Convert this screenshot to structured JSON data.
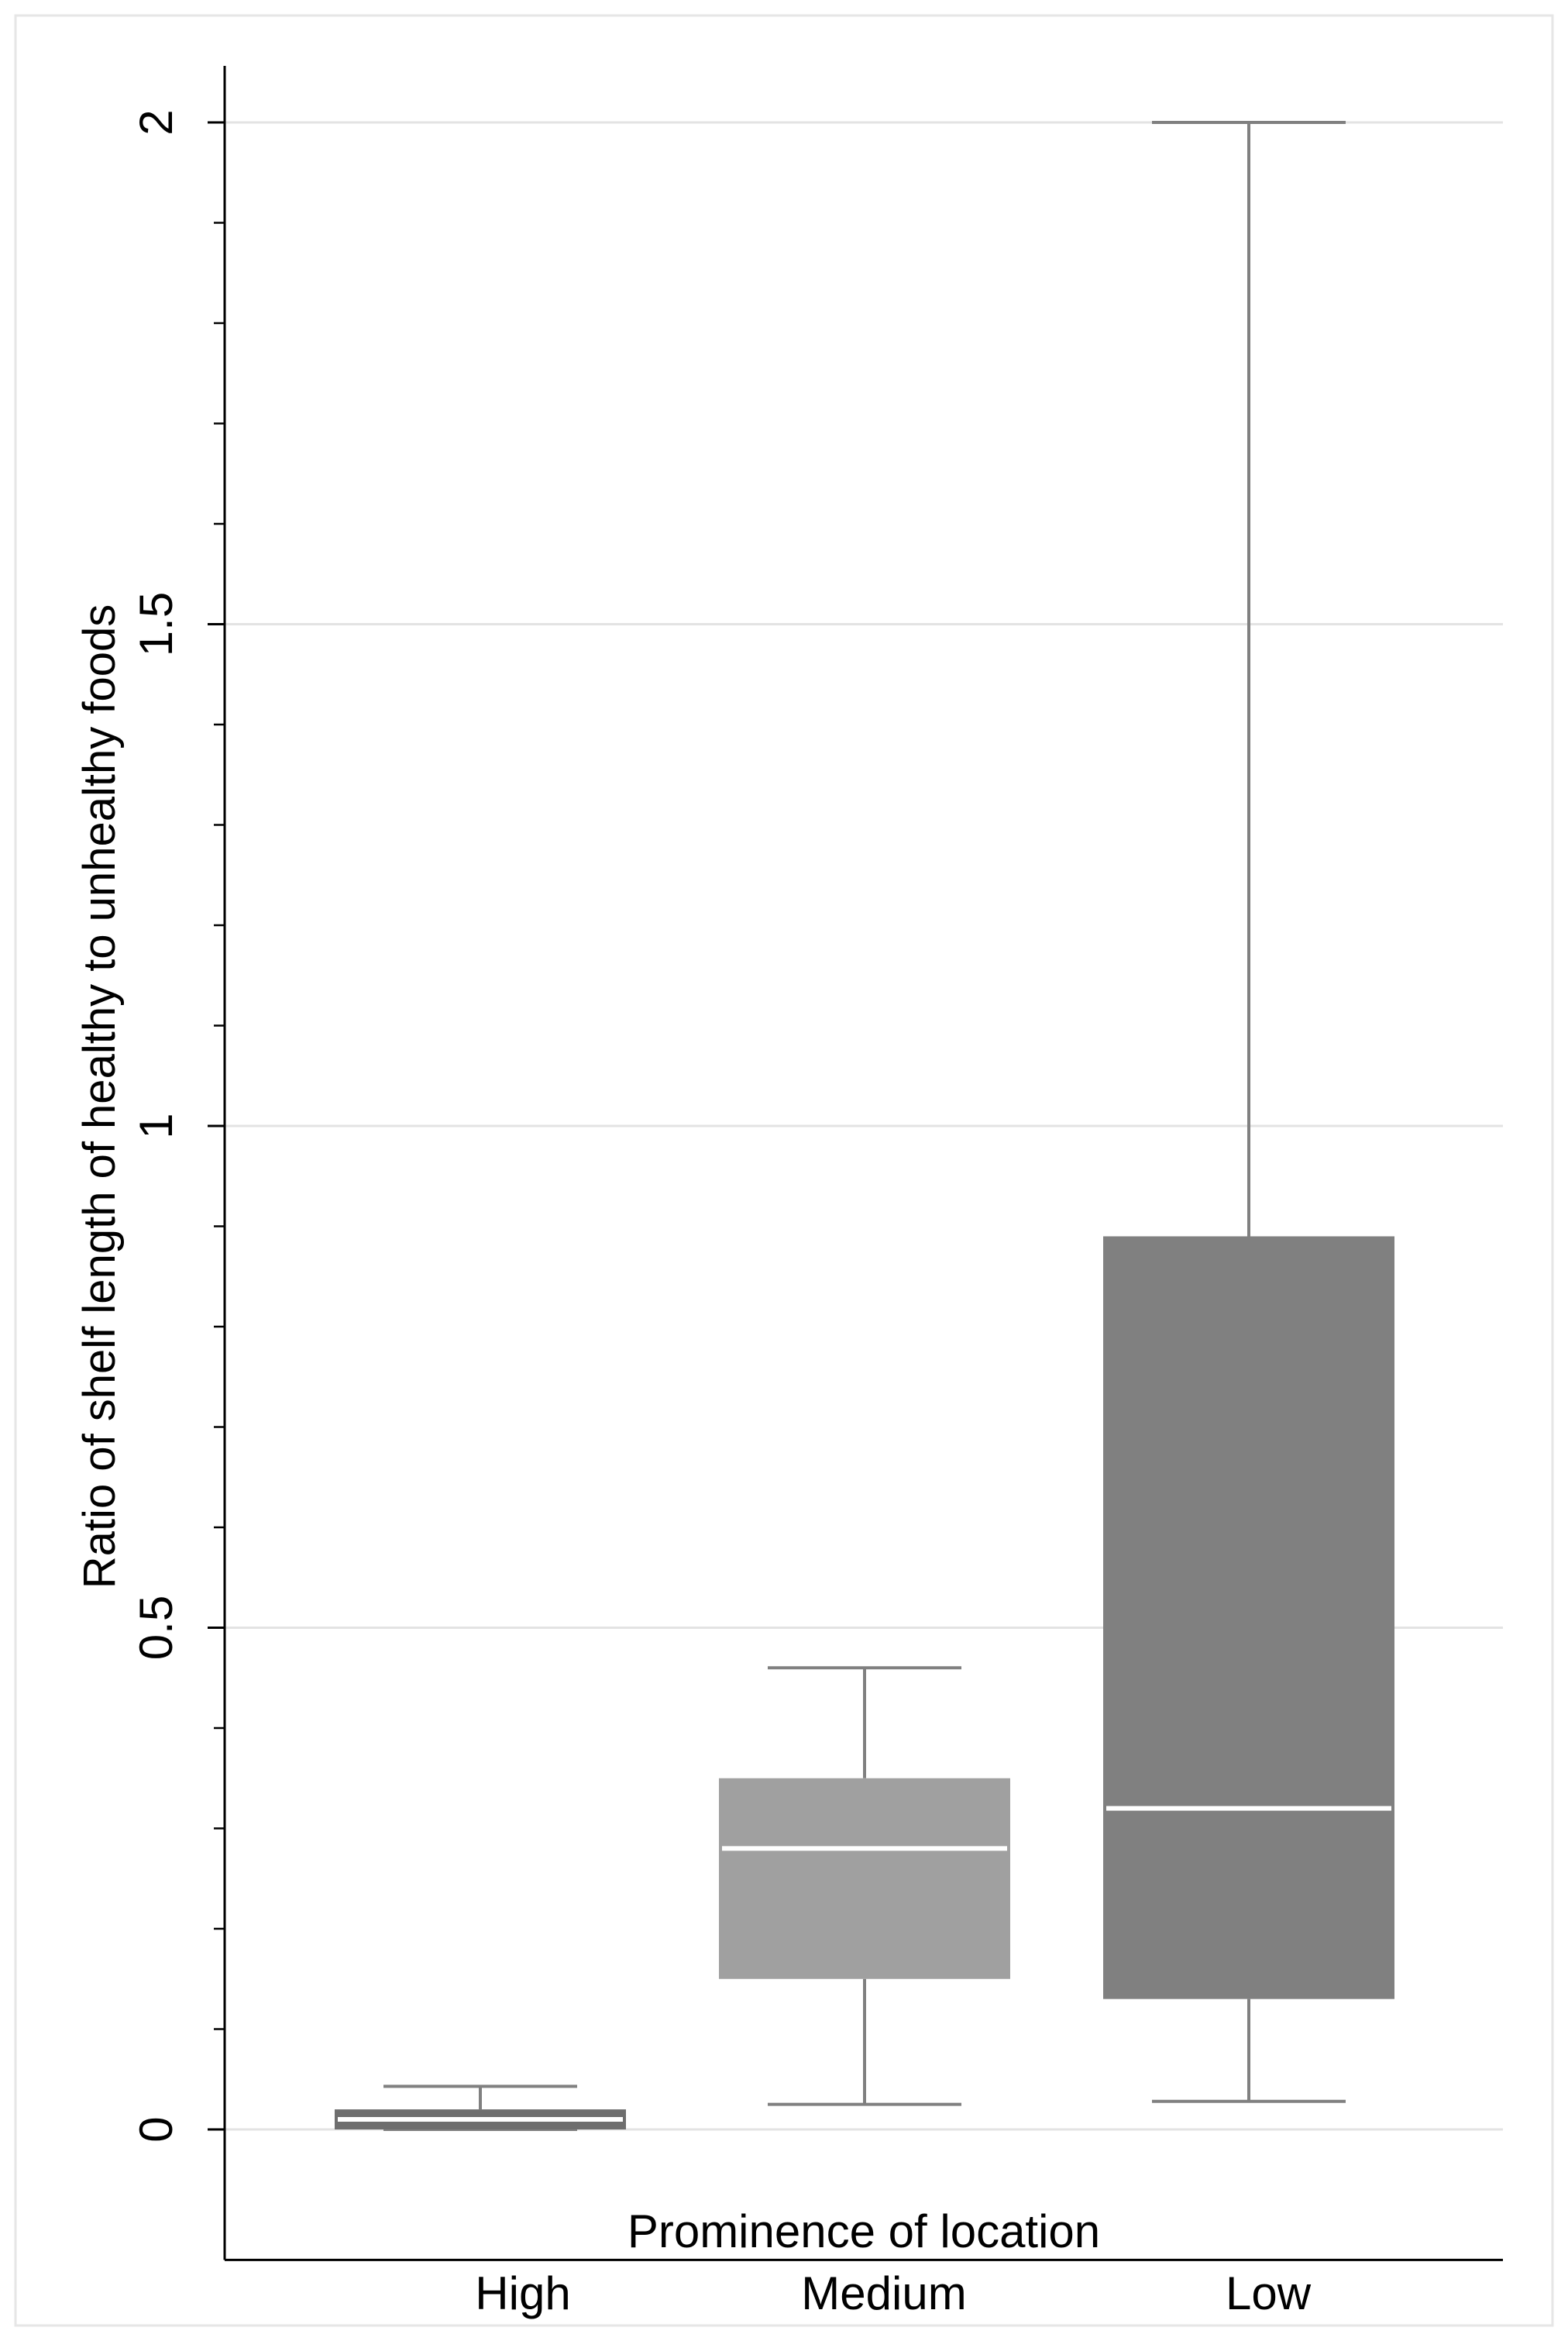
{
  "chart_data": {
    "type": "box",
    "title": "",
    "xlabel": "Prominence of location",
    "ylabel": "Ratio of shelf length of healthy to unhealthy foods",
    "ylim": [
      -0.13,
      2.1
    ],
    "yticks": [
      0,
      0.5,
      1,
      1.5,
      2
    ],
    "ytick_labels": [
      "0",
      "0.5",
      "1",
      "1.5",
      "2"
    ],
    "grid": true,
    "categories": [
      "High",
      "Medium",
      "Low"
    ],
    "boxes": [
      {
        "category": "High",
        "whisker_low": 0,
        "q1": 0,
        "median": 0.01,
        "q3": 0.02,
        "whisker_high": 0.043,
        "color": "#6e6e6e"
      },
      {
        "category": "Medium",
        "whisker_low": 0.025,
        "q1": 0.15,
        "median": 0.28,
        "q3": 0.35,
        "whisker_high": 0.46,
        "color": "#a0a0a0"
      },
      {
        "category": "Low",
        "whisker_low": 0.028,
        "q1": 0.13,
        "median": 0.32,
        "q3": 0.89,
        "whisker_high": 2.0,
        "color": "#808080"
      }
    ],
    "median_line_color": "#ffffff",
    "whisker_color": "#808080"
  }
}
